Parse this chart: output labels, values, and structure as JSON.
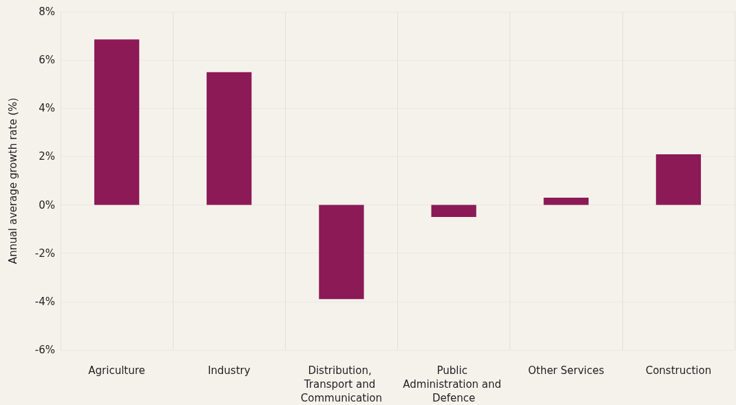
{
  "chart_data": {
    "type": "bar",
    "ylabel": "Annual average growth rate (%)",
    "categories": [
      "Agriculture",
      "Industry",
      "Distribution, Transport and Communication",
      "Public Administration and Defence",
      "Other Services",
      "Construction"
    ],
    "values": [
      6.85,
      5.5,
      -3.9,
      -0.5,
      0.3,
      2.1
    ],
    "color": "#8b1a57",
    "ylim": [
      -6,
      8
    ],
    "yticks": [
      {
        "value": -6,
        "label": "-6%"
      },
      {
        "value": -4,
        "label": "-4%"
      },
      {
        "value": -2,
        "label": "-2%"
      },
      {
        "value": 0,
        "label": "0%"
      },
      {
        "value": 2,
        "label": "2%"
      },
      {
        "value": 4,
        "label": "4%"
      },
      {
        "value": 6,
        "label": "6%"
      },
      {
        "value": 8,
        "label": "8%"
      }
    ],
    "grid": true
  }
}
